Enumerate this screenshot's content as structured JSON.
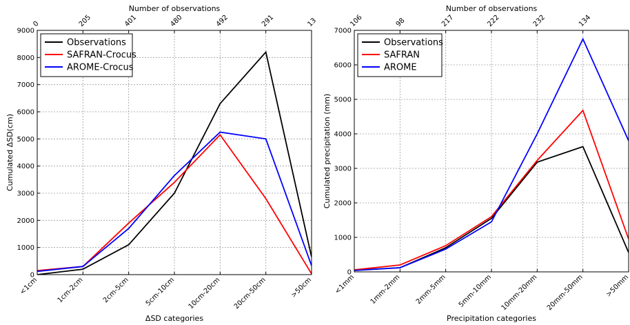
{
  "chart_data": [
    {
      "type": "line",
      "categories": [
        "<1cm",
        "1cm-2cm",
        "2cm-5cm",
        "5cm-10cm",
        "10cm-20cm",
        "20cm-50cm",
        ">50cm"
      ],
      "top_axis_title": "Number of observations",
      "top_ticks": [
        "0",
        "205",
        "401",
        "480",
        "492",
        "291",
        "13"
      ],
      "xlabel": "ΔSD categories",
      "ylabel": "Cumulated ΔSD(cm)",
      "ylim": [
        0,
        9000
      ],
      "yticks": [
        0,
        1000,
        2000,
        3000,
        4000,
        5000,
        6000,
        7000,
        8000,
        9000
      ],
      "grid": true,
      "legend_position": "top-left",
      "series": [
        {
          "name": "Observations",
          "color": "#000000",
          "values": [
            0,
            200,
            1100,
            3000,
            6300,
            8200,
            650
          ]
        },
        {
          "name": "SAFRAN-Crocus",
          "color": "#ff0000",
          "values": [
            150,
            300,
            1900,
            3400,
            5150,
            2800,
            30
          ]
        },
        {
          "name": "AROME-Crocus",
          "color": "#0000ff",
          "values": [
            120,
            300,
            1700,
            3650,
            5250,
            5000,
            330
          ]
        }
      ]
    },
    {
      "type": "line",
      "categories": [
        "<1mm",
        "1mm-2mm",
        "2mm-5mm",
        "5mm-10mm",
        "10mm-20mm",
        "20mm-50mm",
        ">50mm"
      ],
      "top_axis_title": "Number of observations",
      "top_ticks": [
        "106",
        "98",
        "217",
        "222",
        "232",
        "134",
        ""
      ],
      "xlabel": "Precipitation categories",
      "ylabel": "Cumulated precipitation (mm)",
      "ylim": [
        0,
        7000
      ],
      "yticks": [
        0,
        1000,
        2000,
        3000,
        4000,
        5000,
        6000,
        7000
      ],
      "grid": true,
      "legend_position": "top-left",
      "series": [
        {
          "name": "Observations",
          "color": "#000000",
          "values": [
            50,
            120,
            700,
            1550,
            3180,
            3630,
            560
          ]
        },
        {
          "name": "SAFRAN",
          "color": "#ff0000",
          "values": [
            60,
            200,
            760,
            1600,
            3230,
            4680,
            950
          ]
        },
        {
          "name": "AROME",
          "color": "#0000ff",
          "values": [
            40,
            120,
            660,
            1450,
            4000,
            6750,
            3800
          ]
        }
      ]
    }
  ]
}
